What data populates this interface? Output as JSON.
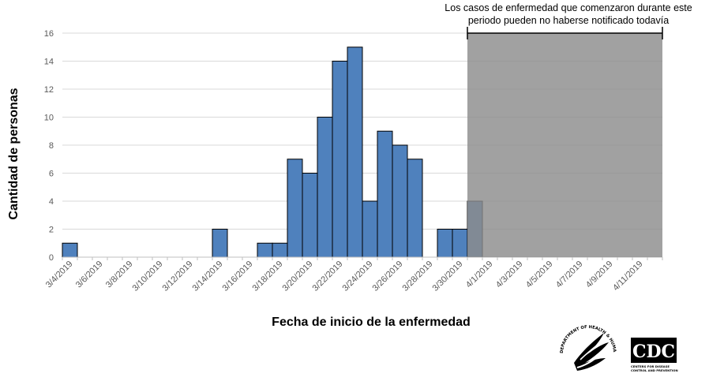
{
  "chart_data": {
    "type": "bar",
    "title": "",
    "xlabel": "Fecha de inicio de la enfermedad",
    "ylabel": "Cantidad de personas",
    "ylim": [
      0,
      16
    ],
    "yticks": [
      0,
      2,
      4,
      6,
      8,
      10,
      12,
      14,
      16
    ],
    "grid": true,
    "bar_color": "#4f81bd",
    "shade_color": "#8c8c8c",
    "annotation": {
      "lines": [
        "Los casos de enfermedad que comenzaron durante este",
        "periodo pueden no haberse notificado todavía"
      ],
      "start_date": "3/31/2019",
      "end_date": "4/12/2019",
      "shaded_level": 16
    },
    "categories": [
      "3/4/2019",
      "3/5/2019",
      "3/6/2019",
      "3/7/2019",
      "3/8/2019",
      "3/9/2019",
      "3/10/2019",
      "3/11/2019",
      "3/12/2019",
      "3/13/2019",
      "3/14/2019",
      "3/15/2019",
      "3/16/2019",
      "3/17/2019",
      "3/18/2019",
      "3/19/2019",
      "3/20/2019",
      "3/21/2019",
      "3/22/2019",
      "3/23/2019",
      "3/24/2019",
      "3/25/2019",
      "3/26/2019",
      "3/27/2019",
      "3/28/2019",
      "3/29/2019",
      "3/30/2019",
      "3/31/2019",
      "4/1/2019",
      "4/2/2019",
      "4/3/2019",
      "4/4/2019",
      "4/5/2019",
      "4/6/2019",
      "4/7/2019",
      "4/8/2019",
      "4/9/2019",
      "4/10/2019",
      "4/11/2019",
      "4/12/2019"
    ],
    "values": [
      1,
      0,
      0,
      0,
      0,
      0,
      0,
      0,
      0,
      0,
      2,
      0,
      0,
      1,
      1,
      7,
      6,
      10,
      14,
      15,
      4,
      9,
      8,
      7,
      0,
      2,
      2,
      4,
      0,
      0,
      0,
      0,
      0,
      0,
      0,
      0,
      0,
      0,
      0,
      0
    ],
    "tick_labels": [
      "3/4/2019",
      "3/6/2019",
      "3/8/2019",
      "3/10/2019",
      "3/12/2019",
      "3/14/2019",
      "3/16/2019",
      "3/18/2019",
      "3/20/2019",
      "3/22/2019",
      "3/24/2019",
      "3/26/2019",
      "3/28/2019",
      "3/30/2019",
      "4/1/2019",
      "4/3/2019",
      "4/5/2019",
      "4/7/2019",
      "4/9/2019",
      "4/11/2019"
    ]
  },
  "logos": {
    "hhs_text": "DEPARTMENT OF HEALTH & HUMAN SERVICES · USA",
    "cdc_text": "CDC",
    "cdc_subtext_1": "CENTERS FOR DISEASE",
    "cdc_subtext_2": "CONTROL AND PREVENTION"
  }
}
